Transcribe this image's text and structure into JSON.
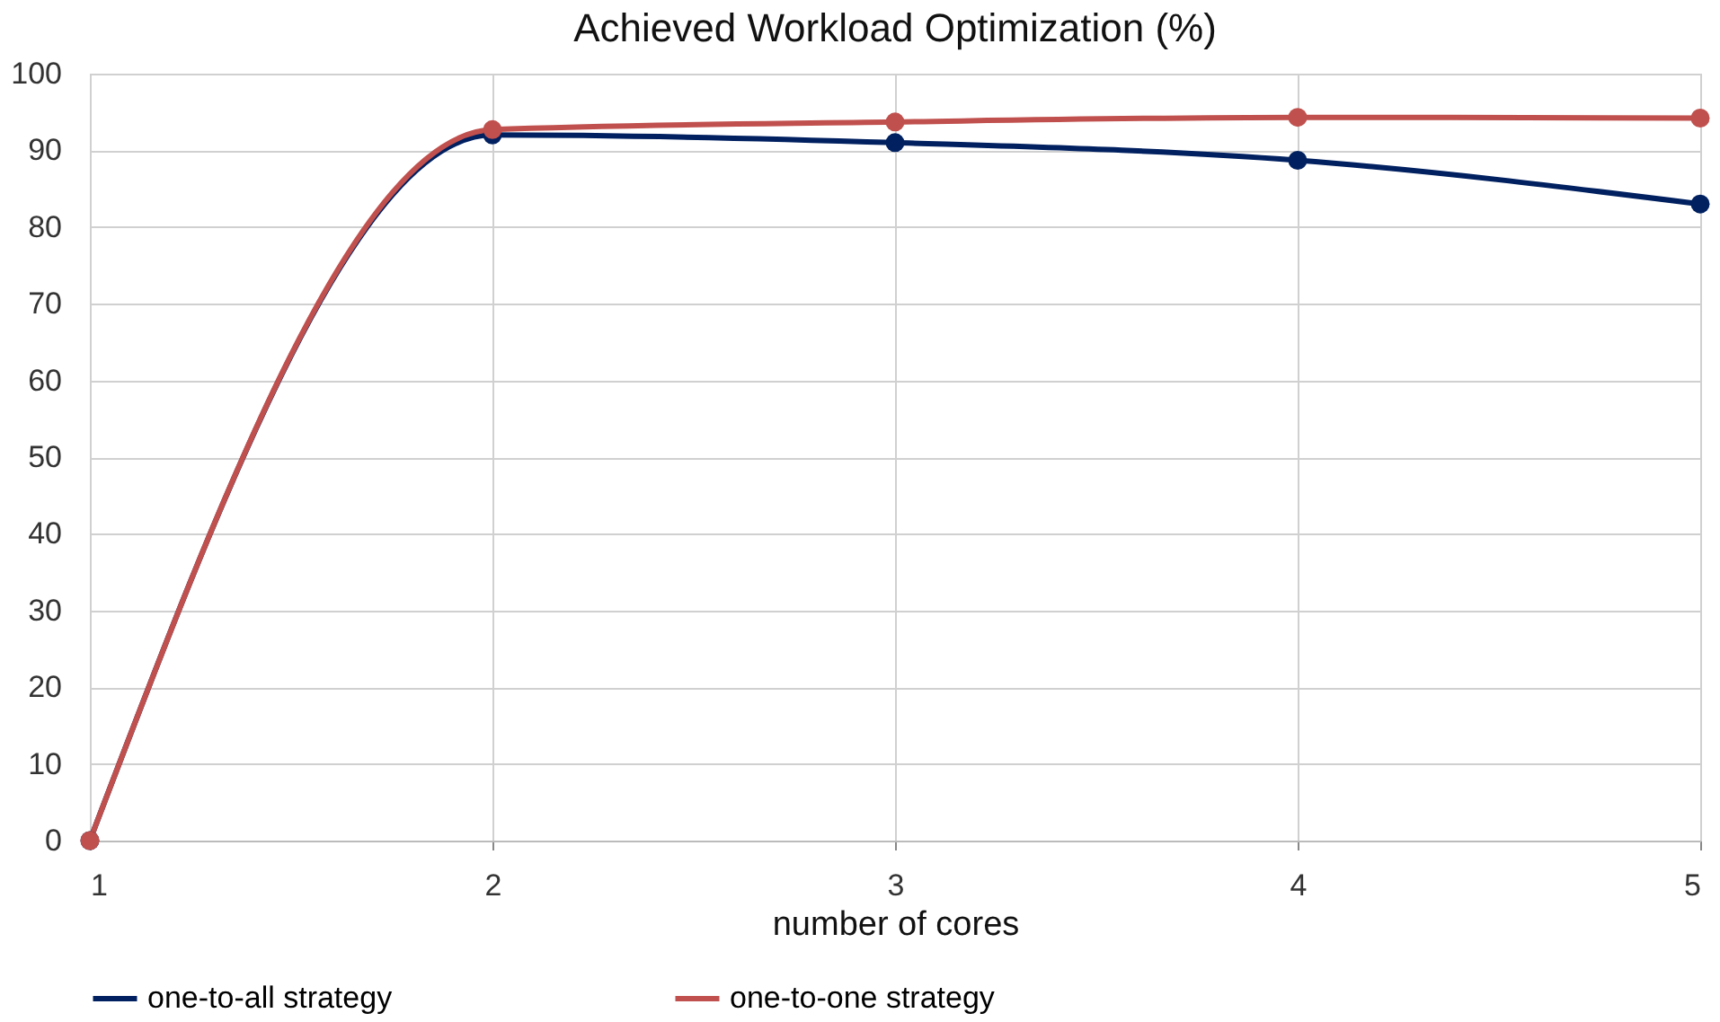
{
  "chart_data": {
    "type": "line",
    "title": "Achieved Workload Optimization (%)",
    "xlabel": "number of cores",
    "x": [
      1,
      2,
      3,
      4,
      5
    ],
    "series": [
      {
        "name": "one-to-all strategy",
        "color": "#002060",
        "values": [
          0,
          92,
          91,
          88.7,
          83
        ]
      },
      {
        "name": "one-to-one strategy",
        "color": "#c0504d",
        "values": [
          0,
          92.7,
          93.7,
          94.3,
          94.2
        ]
      }
    ],
    "xlim": [
      1,
      5
    ],
    "xticks": [
      1,
      2,
      3,
      4,
      5
    ],
    "ylim": [
      0,
      100
    ],
    "yticks": [
      0,
      10,
      20,
      30,
      40,
      50,
      60,
      70,
      80,
      90,
      100
    ],
    "grid": true,
    "legend": "bottom",
    "marker": "circle",
    "line_style": "solid"
  }
}
